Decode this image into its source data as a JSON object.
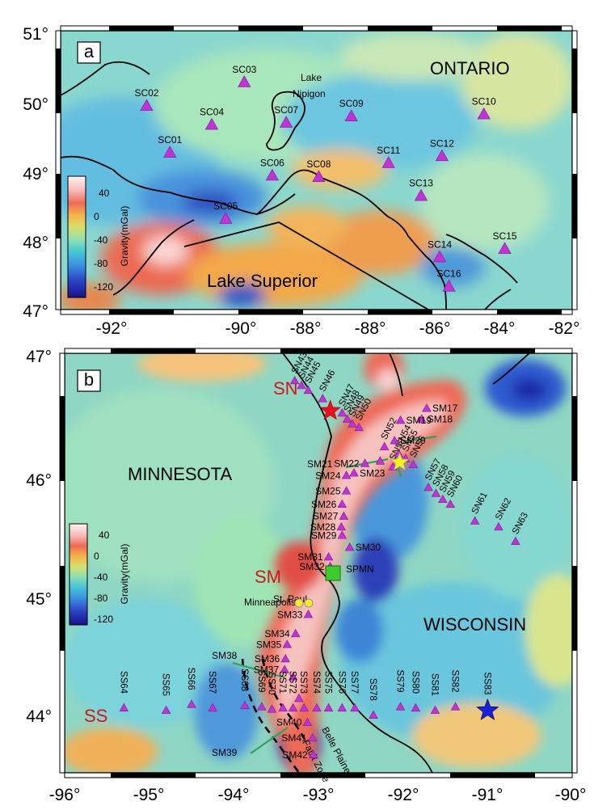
{
  "panel_a": {
    "label": "a",
    "region_labels": {
      "ontario": "ONTARIO",
      "lake_superior": "Lake Superior",
      "lake_nipigon": [
        "Lake",
        "Nipigon"
      ]
    },
    "lat_ticks": [
      "47°",
      "48°",
      "49°",
      "50°",
      "51°"
    ],
    "lon_ticks": [
      "-92°",
      "-90°",
      "-88°",
      "-86°",
      "-84°",
      "-82°"
    ],
    "stations": [
      {
        "name": "SC01",
        "lon": -90.65,
        "lat": 49.25
      },
      {
        "name": "SC02",
        "lon": -91.15,
        "lat": 49.92
      },
      {
        "name": "SC03",
        "lon": -89.05,
        "lat": 50.26
      },
      {
        "name": "SC04",
        "lon": -89.75,
        "lat": 49.65
      },
      {
        "name": "SC05",
        "lon": -89.45,
        "lat": 48.3
      },
      {
        "name": "SC06",
        "lon": -88.45,
        "lat": 48.92
      },
      {
        "name": "SC07",
        "lon": -88.15,
        "lat": 49.68
      },
      {
        "name": "SC08",
        "lon": -87.45,
        "lat": 48.9
      },
      {
        "name": "SC09",
        "lon": -86.75,
        "lat": 49.77
      },
      {
        "name": "SC10",
        "lon": -83.9,
        "lat": 49.8
      },
      {
        "name": "SC11",
        "lon": -85.95,
        "lat": 49.1
      },
      {
        "name": "SC12",
        "lon": -84.8,
        "lat": 49.2
      },
      {
        "name": "SC13",
        "lon": -85.25,
        "lat": 48.63
      },
      {
        "name": "SC14",
        "lon": -84.85,
        "lat": 47.75
      },
      {
        "name": "SC15",
        "lon": -83.45,
        "lat": 47.87
      },
      {
        "name": "SC16",
        "lon": -84.65,
        "lat": 47.33
      }
    ]
  },
  "panel_b": {
    "label": "b",
    "region_labels": {
      "minnesota": "MINNESOTA",
      "wisconsin": "WISCONSIN",
      "st_paul": "St. Paul",
      "minneapolis": "Minneapolis",
      "belle_plaine": "Belle Plaine",
      "fault_zone": "Fault Zone",
      "spmn": "SPMN"
    },
    "line_labels": {
      "sn": "SN",
      "sm": "SM",
      "ss": "SS"
    },
    "lat_ticks": [
      "44°",
      "45°",
      "46°",
      "47°"
    ],
    "lon_ticks": [
      "-96°",
      "-95°",
      "-94°",
      "-93°",
      "-92°",
      "-91°",
      "-90°"
    ],
    "sn_stations": [
      {
        "name": "SN43",
        "lon": -93.28,
        "lat": 46.77
      },
      {
        "name": "SN44",
        "lon": -93.2,
        "lat": 46.73
      },
      {
        "name": "SN45",
        "lon": -93.12,
        "lat": 46.69
      },
      {
        "name": "SN46",
        "lon": -92.95,
        "lat": 46.62
      },
      {
        "name": "SN47",
        "lon": -92.72,
        "lat": 46.5
      },
      {
        "name": "SN48",
        "lon": -92.66,
        "lat": 46.45
      },
      {
        "name": "SN49",
        "lon": -92.6,
        "lat": 46.41
      },
      {
        "name": "SN50",
        "lon": -92.52,
        "lat": 46.38
      },
      {
        "name": "SN52",
        "lon": -92.22,
        "lat": 46.22
      },
      {
        "name": "SN53",
        "lon": -92.12,
        "lat": 46.05
      },
      {
        "name": "SN54",
        "lon": -92.05,
        "lat": 46.16
      },
      {
        "name": "SN55",
        "lon": -91.97,
        "lat": 46.12
      },
      {
        "name": "SN56",
        "lon": -91.88,
        "lat": 46.07
      },
      {
        "name": "SN57",
        "lon": -91.7,
        "lat": 45.88
      },
      {
        "name": "SN58",
        "lon": -91.61,
        "lat": 45.83
      },
      {
        "name": "SN59",
        "lon": -91.53,
        "lat": 45.78
      },
      {
        "name": "SN60",
        "lon": -91.44,
        "lat": 45.74
      },
      {
        "name": "SN61",
        "lon": -91.15,
        "lat": 45.6
      },
      {
        "name": "SN62",
        "lon": -90.87,
        "lat": 45.55
      },
      {
        "name": "SN63",
        "lon": -90.67,
        "lat": 45.43
      }
    ],
    "sm_stations": [
      {
        "name": "SM17",
        "lon": -91.72,
        "lat": 46.54
      },
      {
        "name": "SM18",
        "lon": -91.78,
        "lat": 46.45
      },
      {
        "name": "SM19",
        "lon": -92.03,
        "lat": 46.44
      },
      {
        "name": "SM20",
        "lon": -92.1,
        "lat": 46.27
      },
      {
        "name": "SM21",
        "lon": -92.27,
        "lat": 46.1
      },
      {
        "name": "SM22",
        "lon": -92.45,
        "lat": 46.08
      },
      {
        "name": "SM23",
        "lon": -92.58,
        "lat": 46.0
      },
      {
        "name": "SM24",
        "lon": -92.67,
        "lat": 45.98
      },
      {
        "name": "SM25",
        "lon": -92.67,
        "lat": 45.85
      },
      {
        "name": "SM26",
        "lon": -92.72,
        "lat": 45.74
      },
      {
        "name": "SM27",
        "lon": -92.7,
        "lat": 45.64
      },
      {
        "name": "SM28",
        "lon": -92.73,
        "lat": 45.55
      },
      {
        "name": "SM29",
        "lon": -92.72,
        "lat": 45.48
      },
      {
        "name": "SM30",
        "lon": -92.63,
        "lat": 45.38
      },
      {
        "name": "SM31",
        "lon": -92.88,
        "lat": 45.3
      },
      {
        "name": "SM32",
        "lon": -92.86,
        "lat": 45.22
      },
      {
        "name": "SM33",
        "lon": -93.12,
        "lat": 44.82
      },
      {
        "name": "SM34",
        "lon": -93.27,
        "lat": 44.66
      },
      {
        "name": "SM35",
        "lon": -93.37,
        "lat": 44.57
      },
      {
        "name": "SM36",
        "lon": -93.39,
        "lat": 44.45
      },
      {
        "name": "SM37",
        "lon": -93.4,
        "lat": 44.36
      },
      {
        "name": "SM38",
        "lon": -93.3,
        "lat": 44.3
      },
      {
        "name": "SM39",
        "lon": -93.23,
        "lat": 44.12
      },
      {
        "name": "SM40",
        "lon": -93.13,
        "lat": 43.92
      },
      {
        "name": "SM41",
        "lon": -93.07,
        "lat": 43.79
      },
      {
        "name": "SM42",
        "lon": -93.06,
        "lat": 43.65
      }
    ],
    "ss_stations": [
      {
        "name": "SS64",
        "lon": -95.3,
        "lat": 44.04
      },
      {
        "name": "SS65",
        "lon": -94.8,
        "lat": 44.02
      },
      {
        "name": "SS66",
        "lon": -94.5,
        "lat": 44.07
      },
      {
        "name": "SS67",
        "lon": -94.25,
        "lat": 44.04
      },
      {
        "name": "SS68",
        "lon": -93.87,
        "lat": 44.06
      },
      {
        "name": "SS69",
        "lon": -93.67,
        "lat": 44.05
      },
      {
        "name": "SS70",
        "lon": -93.55,
        "lat": 44.03
      },
      {
        "name": "SS71",
        "lon": -93.42,
        "lat": 44.04
      },
      {
        "name": "SS72",
        "lon": -93.3,
        "lat": 44.04
      },
      {
        "name": "SS73",
        "lon": -93.17,
        "lat": 44.04
      },
      {
        "name": "SS74",
        "lon": -93.02,
        "lat": 44.04
      },
      {
        "name": "SS75",
        "lon": -92.88,
        "lat": 44.04
      },
      {
        "name": "SS76",
        "lon": -92.72,
        "lat": 44.04
      },
      {
        "name": "SS77",
        "lon": -92.57,
        "lat": 44.04
      },
      {
        "name": "SS78",
        "lon": -92.35,
        "lat": 43.98
      },
      {
        "name": "SS79",
        "lon": -92.03,
        "lat": 44.05
      },
      {
        "name": "SS80",
        "lon": -91.85,
        "lat": 44.04
      },
      {
        "name": "SS81",
        "lon": -91.62,
        "lat": 44.02
      },
      {
        "name": "SS82",
        "lon": -91.38,
        "lat": 44.05
      },
      {
        "name": "SS83",
        "lon": -91.0,
        "lat": 44.03
      }
    ]
  },
  "colorbar": {
    "label": "Gravity(mGal)",
    "ticks": [
      "40",
      "0",
      "-40",
      "-80",
      "-120"
    ]
  },
  "colors": {
    "station": "#c034d6",
    "red_star": "#e8121c",
    "yellow_star": "#f5ef20",
    "blue_star": "#1a1fe0",
    "spmn_square": "#3ccc2e",
    "city": "#f4ec2a",
    "arrow": "#2ea15a",
    "line_label": "#d0161b"
  }
}
